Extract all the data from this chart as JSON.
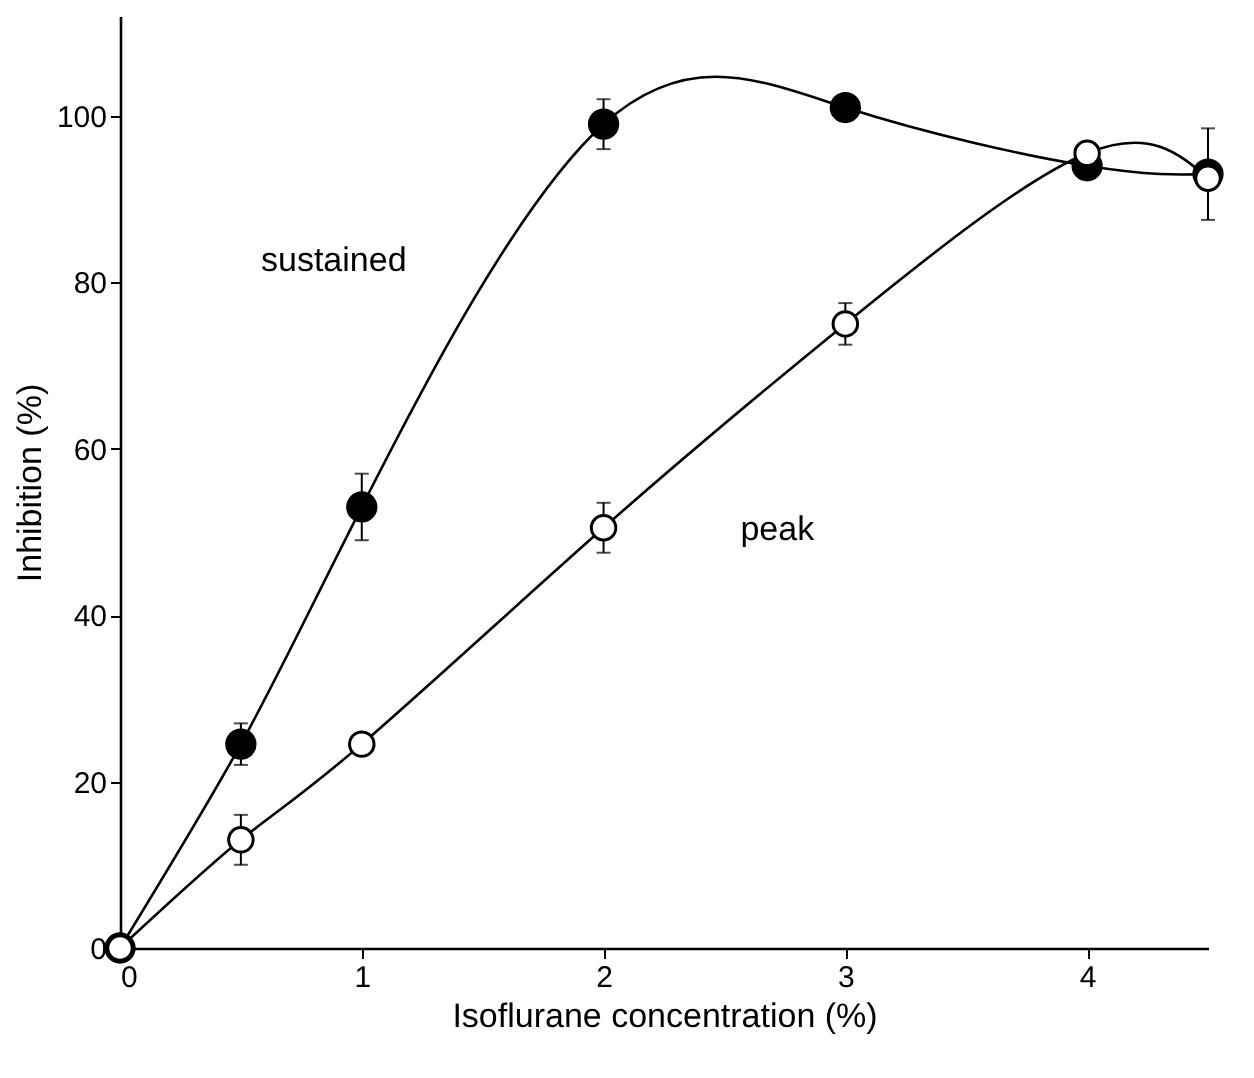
{
  "chart_data": {
    "type": "line",
    "xlabel": "Isoflurane concentration (%)",
    "ylabel": "Inhibition (%)",
    "x": [
      0,
      0.5,
      1,
      2,
      3,
      4,
      4.5
    ],
    "series": [
      {
        "name": "sustained",
        "color": "#000000",
        "values": [
          0,
          24.5,
          53,
          99,
          101,
          94,
          93
        ],
        "errors": [
          null,
          2.5,
          4,
          3,
          null,
          null,
          5.5
        ]
      },
      {
        "name": "peak",
        "color": "#000000",
        "values": [
          0,
          13,
          24.5,
          50.5,
          75,
          95.5,
          92.5
        ],
        "errors": [
          null,
          3,
          null,
          3,
          2.5,
          null,
          null
        ]
      }
    ],
    "xlim": [
      0,
      4.5
    ],
    "xticks": [
      0,
      1,
      2,
      3,
      4
    ],
    "ylim": [
      0,
      112
    ],
    "yticks": [
      0,
      20,
      40,
      60,
      80,
      100
    ],
    "marker": "circle",
    "line_style": "solid",
    "grid": false,
    "legend": false
  }
}
